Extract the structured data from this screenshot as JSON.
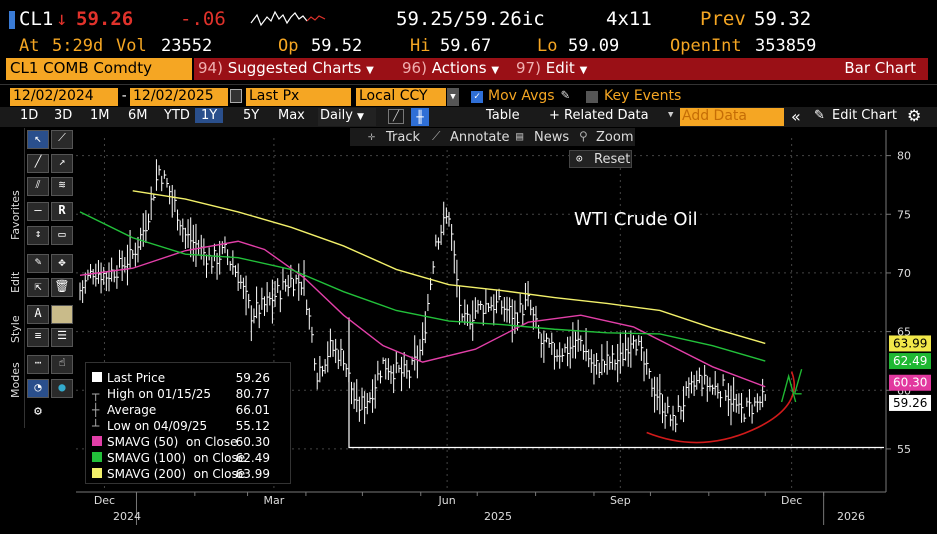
{
  "quote": {
    "ticker": "CL1",
    "down_arrow": "↓",
    "last": "59.26",
    "change": "-.06",
    "bid_ask": "59.25/59.26ic",
    "size": "4x11",
    "prev_label": "Prev",
    "prev_value": "59.32",
    "at_label": "At",
    "at_time": "5:29d",
    "vol_label": "Vol",
    "vol_value": "23552",
    "op_label": "Op",
    "op_value": "59.52",
    "hi_label": "Hi",
    "hi_value": "59.67",
    "lo_label": "Lo",
    "lo_value": "59.09",
    "oi_label": "OpenInt",
    "oi_value": "353859"
  },
  "menu": {
    "security": "CL1 COMB Comdty",
    "suggested_num": "94)",
    "suggested": "Suggested Charts",
    "actions_num": "96)",
    "actions": "Actions",
    "edit_num": "97)",
    "edit": "Edit",
    "chart_type": "Bar Chart"
  },
  "controls": {
    "start_date": "12/02/2024",
    "end_date": "12/02/2025",
    "field": "Last Px",
    "currency": "Local CCY",
    "mov_avgs": "Mov Avgs",
    "key_events": "Key Events",
    "periods": [
      "1D",
      "3D",
      "1M",
      "6M",
      "YTD",
      "1Y",
      "5Y",
      "Max"
    ],
    "active_period": "1Y",
    "frequency": "Daily",
    "table": "Table",
    "related": "+ Related Data",
    "add_data_placeholder": "Add Data",
    "edit_chart": "Edit Chart",
    "track": "Track",
    "annotate": "Annotate",
    "news": "News",
    "zoom": "Zoom",
    "reset": "Reset"
  },
  "side": {
    "favorites": "Favorites",
    "edit": "Edit",
    "style": "Style",
    "modes": "Modes"
  },
  "legend": [
    {
      "label": "Last Price",
      "value": "59.26",
      "color": "#ffffff"
    },
    {
      "label": "High on 01/15/25",
      "value": "80.77",
      "color": ""
    },
    {
      "label": "Average",
      "value": "66.01",
      "color": ""
    },
    {
      "label": "Low on 04/09/25",
      "value": "55.12",
      "color": ""
    },
    {
      "label": "SMAVG (50)  on Close",
      "value": "60.30",
      "color": "#e23fa8"
    },
    {
      "label": "SMAVG (100)  on Close",
      "value": "62.49",
      "color": "#22c03a"
    },
    {
      "label": "SMAVG (200)  on Close",
      "value": "63.99",
      "color": "#f2f06a"
    }
  ],
  "price_tags": [
    {
      "value": "63.99",
      "color": "#f2e84a",
      "text_color": "#000000"
    },
    {
      "value": "62.49",
      "color": "#1fb832",
      "text_color": "#ffffff"
    },
    {
      "value": "60.30",
      "color": "#e2389f",
      "text_color": "#ffffff"
    },
    {
      "value": "59.26",
      "color": "#ffffff",
      "text_color": "#000000"
    }
  ],
  "chart_data": {
    "type": "bar",
    "title": "WTI Crude Oil",
    "x_tick_labels": [
      "Dec",
      "Mar",
      "Jun",
      "Sep",
      "Dec"
    ],
    "year_labels": [
      "2024",
      "2025",
      "2026"
    ],
    "y_ticks": [
      55,
      60,
      65,
      70,
      75,
      80
    ],
    "ylim": [
      51.5,
      81.5
    ],
    "date_range": [
      "2024-12-02",
      "2025-12-02"
    ],
    "support_level": 55.12,
    "close": {
      "dates": [
        "2024-12-02",
        "2024-12-09",
        "2024-12-16",
        "2024-12-23",
        "2024-12-30",
        "2025-01-06",
        "2025-01-13",
        "2025-01-20",
        "2025-01-27",
        "2025-02-03",
        "2025-02-10",
        "2025-02-17",
        "2025-02-24",
        "2025-03-03",
        "2025-03-10",
        "2025-03-17",
        "2025-03-24",
        "2025-03-31",
        "2025-04-07",
        "2025-04-14",
        "2025-04-21",
        "2025-04-28",
        "2025-05-05",
        "2025-05-12",
        "2025-05-19",
        "2025-05-26",
        "2025-06-02",
        "2025-06-09",
        "2025-06-16",
        "2025-06-23",
        "2025-06-30",
        "2025-07-07",
        "2025-07-14",
        "2025-07-21",
        "2025-07-28",
        "2025-08-04",
        "2025-08-11",
        "2025-08-18",
        "2025-08-25",
        "2025-09-01",
        "2025-09-08",
        "2025-09-15",
        "2025-09-22",
        "2025-09-29",
        "2025-10-06",
        "2025-10-13",
        "2025-10-20",
        "2025-10-27",
        "2025-11-03",
        "2025-11-10",
        "2025-11-17",
        "2025-11-24",
        "2025-12-01"
      ],
      "values": [
        68.5,
        70.2,
        69.8,
        70.5,
        71.5,
        74.2,
        78.8,
        76.5,
        73.2,
        72.2,
        71.0,
        71.8,
        69.8,
        66.5,
        67.2,
        68.3,
        69.4,
        69.2,
        61.5,
        63.6,
        62.9,
        58.4,
        59.5,
        62.3,
        61.6,
        61.3,
        63.8,
        72.9,
        75.0,
        65.5,
        66.8,
        67.4,
        67.2,
        66.3,
        67.5,
        64.0,
        63.2,
        63.5,
        64.2,
        61.9,
        62.4,
        62.6,
        64.9,
        61.5,
        59.2,
        57.2,
        59.5,
        60.9,
        60.2,
        60.1,
        58.1,
        58.6,
        59.26
      ]
    },
    "series": [
      {
        "name": "SMAVG (50)",
        "color": "#e23fa8",
        "last": 60.3,
        "points": [
          [
            0,
            69.8
          ],
          [
            4,
            70.4
          ],
          [
            8,
            71.9
          ],
          [
            12,
            72.7
          ],
          [
            14,
            72.0
          ],
          [
            17,
            69.6
          ],
          [
            20,
            66.4
          ],
          [
            23,
            63.8
          ],
          [
            26,
            62.4
          ],
          [
            30,
            63.5
          ],
          [
            34,
            65.8
          ],
          [
            38,
            66.4
          ],
          [
            42,
            65.4
          ],
          [
            45,
            63.7
          ],
          [
            48,
            62.0
          ],
          [
            52,
            60.3
          ]
        ]
      },
      {
        "name": "SMAVG (100)",
        "color": "#22c03a",
        "last": 62.49,
        "points": [
          [
            0,
            75.2
          ],
          [
            4,
            73.0
          ],
          [
            8,
            71.6
          ],
          [
            12,
            71.3
          ],
          [
            16,
            70.3
          ],
          [
            20,
            68.4
          ],
          [
            24,
            66.8
          ],
          [
            28,
            65.9
          ],
          [
            32,
            65.6
          ],
          [
            36,
            65.2
          ],
          [
            40,
            64.9
          ],
          [
            44,
            64.8
          ],
          [
            48,
            63.8
          ],
          [
            52,
            62.49
          ]
        ]
      },
      {
        "name": "SMAVG (200)",
        "color": "#f2f06a",
        "last": 63.99,
        "points": [
          [
            4,
            77.0
          ],
          [
            8,
            76.3
          ],
          [
            12,
            75.2
          ],
          [
            16,
            73.9
          ],
          [
            20,
            72.3
          ],
          [
            24,
            70.3
          ],
          [
            28,
            69.0
          ],
          [
            32,
            68.5
          ],
          [
            36,
            67.9
          ],
          [
            40,
            67.4
          ],
          [
            44,
            66.8
          ],
          [
            48,
            65.3
          ],
          [
            52,
            63.99
          ]
        ]
      }
    ]
  }
}
